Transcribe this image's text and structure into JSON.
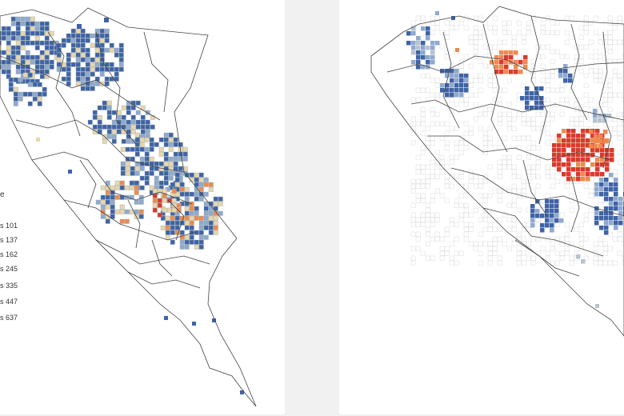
{
  "legend": {
    "title": "e",
    "items": [
      {
        "label": "s 101"
      },
      {
        "label": "s 137"
      },
      {
        "label": "s 162"
      },
      {
        "label": "s 245"
      },
      {
        "label": "s 335"
      },
      {
        "label": "s 447"
      },
      {
        "label": "s 637"
      }
    ]
  },
  "colors": {
    "blue": "#3f63a7",
    "light_blue": "#8fa9cf",
    "tan": "#e9d6ad",
    "orange": "#ee8a4e",
    "red": "#d93a2b",
    "gray": "#b8c3cf",
    "outline": "#444444",
    "background": "#f1f1f1"
  },
  "panels": [
    {
      "name": "left-map"
    },
    {
      "name": "right-map"
    }
  ]
}
